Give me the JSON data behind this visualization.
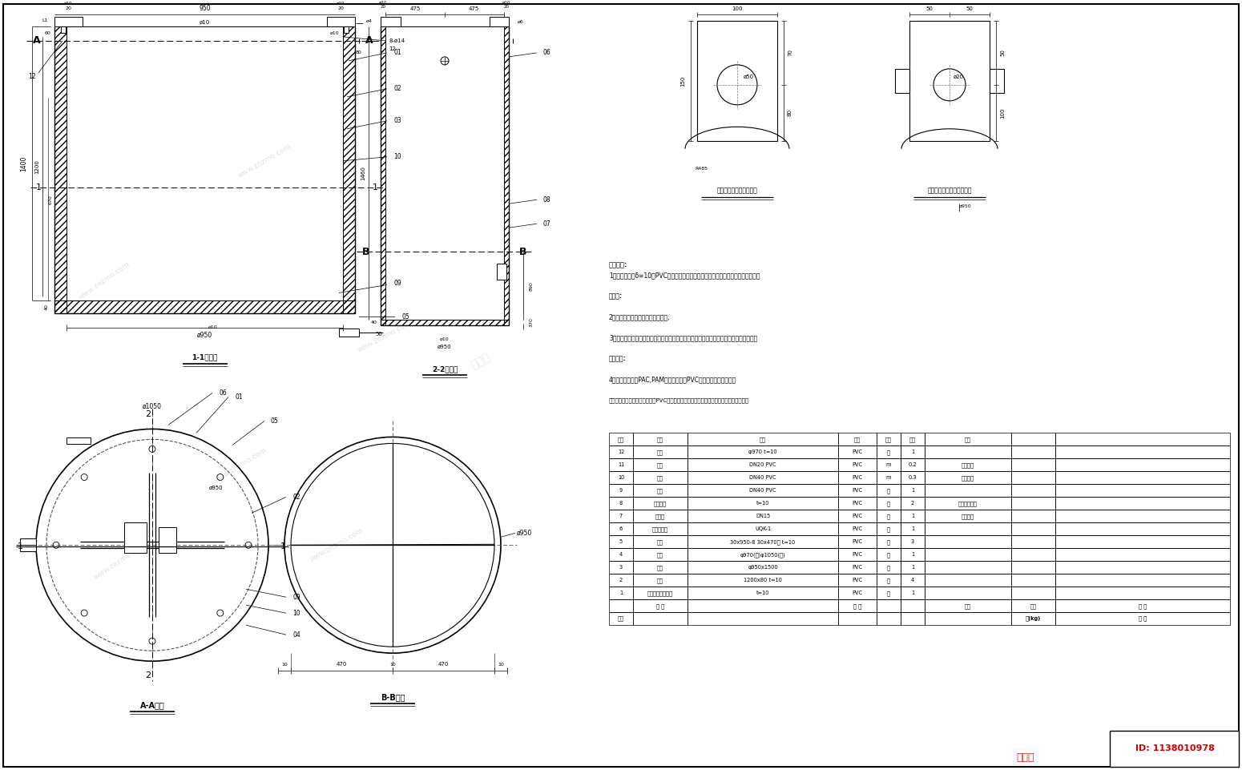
{
  "bg_color": "#ffffff",
  "line_color": "#000000",
  "notes": [
    "技术要求:",
    "1、整个槽体由δ=10的PVC板料制成，制成之前应仔细清洗干净，并且满足焉接要求",
    "打放口:",
    "2、槽体焉接完成后电极一遇清洗;",
    "3、进水管、排气管、浮球式液位控制器的开口方位可根据现场实际情况适当调整，尽方便",
    "安装要求:",
    "4、加药若需投加PAC,PAM，或三氮化销PVC解稀处应对应防腐处加",
    "备注：若市场资源展示不能适用PVC材质则应按实际情况加工制作和选用适用的防腐材质。"
  ],
  "table_rows": [
    [
      "12",
      "笒盖",
      "φ970 t=10",
      "PVC",
      "个",
      "1",
      ""
    ],
    [
      "11",
      "提手",
      "DN20 PVC",
      "PVC",
      "m",
      "0.2",
      "提手详图"
    ],
    [
      "10",
      "提手",
      "DN40 PVC",
      "PVC",
      "m",
      "0.3",
      "提手详图"
    ],
    [
      "9",
      "入水",
      "DN40 PVC",
      "PVC",
      "个",
      "1",
      ""
    ],
    [
      "8",
      "防滢隔板",
      "t=10",
      "PVC",
      "个",
      "2",
      "防滢隔板详图"
    ],
    [
      "7",
      "排气管",
      "DN15",
      "PVC",
      "个",
      "1",
      "排气详图"
    ],
    [
      "6",
      "液位控制器",
      "UQK-1",
      "PVC",
      "个",
      "1",
      ""
    ],
    [
      "5",
      "支架",
      "30x950-8 30x470版 t=10",
      "PVC",
      "个",
      "3",
      ""
    ],
    [
      "4",
      "盖子",
      "φ970(内)φ1050(外)",
      "PVC",
      "个",
      "1",
      ""
    ],
    [
      "3",
      "槽子",
      "φ950x1500",
      "PVC",
      "个",
      "1",
      ""
    ],
    [
      "2",
      "底板",
      "1200x80 t=10",
      "PVC",
      "个",
      "4",
      ""
    ],
    [
      "1",
      "防腐满足焉接要求",
      "t=10",
      "PVC",
      "个",
      "1",
      ""
    ]
  ]
}
